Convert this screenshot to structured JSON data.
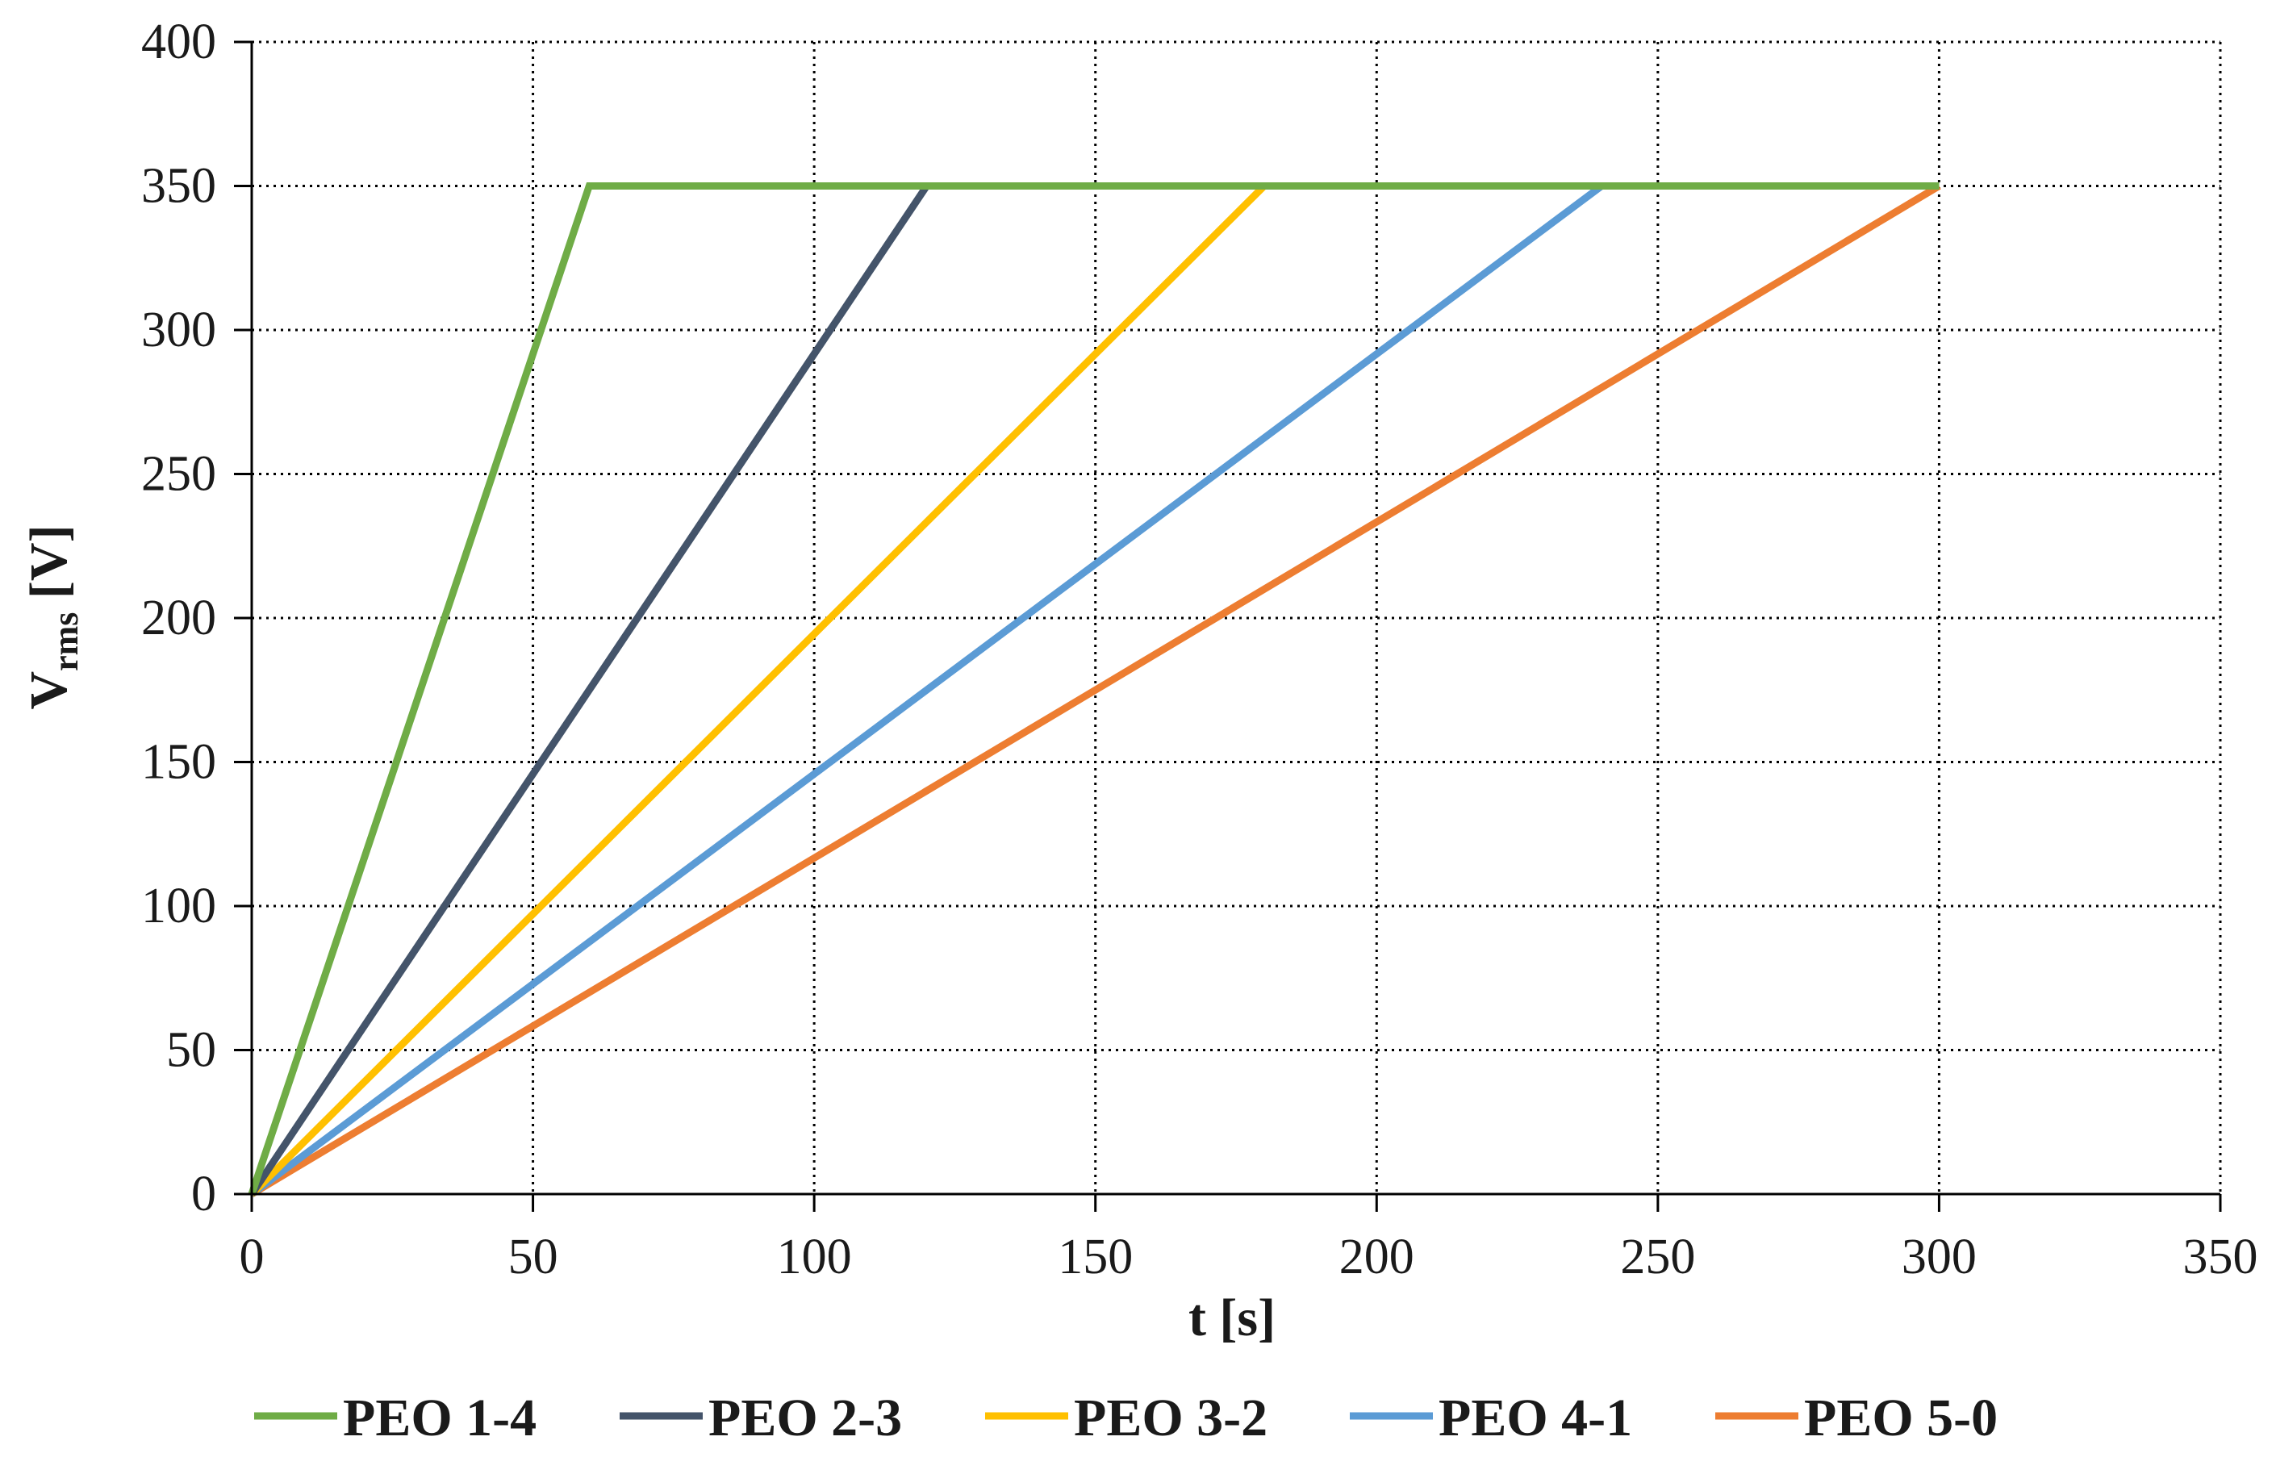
{
  "chart_data": {
    "type": "line",
    "title": "",
    "xlabel": "t [s]",
    "ylabel": {
      "main": "V",
      "sub": "rms",
      "unit": " [V]"
    },
    "xlim": [
      0,
      350
    ],
    "ylim": [
      0,
      400
    ],
    "x_ticks": [
      0,
      50,
      100,
      150,
      200,
      250,
      300,
      350
    ],
    "y_ticks": [
      0,
      50,
      100,
      150,
      200,
      250,
      300,
      350,
      400
    ],
    "grid": true,
    "legend_position": "bottom",
    "series": [
      {
        "name": "PEO 1-4",
        "color": "#6fac46",
        "x": [
          0,
          60,
          300
        ],
        "y": [
          0,
          350,
          350
        ]
      },
      {
        "name": "PEO 2-3",
        "color": "#44546a",
        "x": [
          0,
          120,
          300
        ],
        "y": [
          0,
          350,
          350
        ]
      },
      {
        "name": "PEO 3-2",
        "color": "#ffc000",
        "x": [
          0,
          180,
          300
        ],
        "y": [
          0,
          350,
          350
        ]
      },
      {
        "name": "PEO 4-1",
        "color": "#5b9bd5",
        "x": [
          0,
          240,
          300
        ],
        "y": [
          0,
          350,
          350
        ]
      },
      {
        "name": "PEO 5-0",
        "color": "#ed7d31",
        "x": [
          0,
          300
        ],
        "y": [
          0,
          350
        ]
      }
    ]
  }
}
